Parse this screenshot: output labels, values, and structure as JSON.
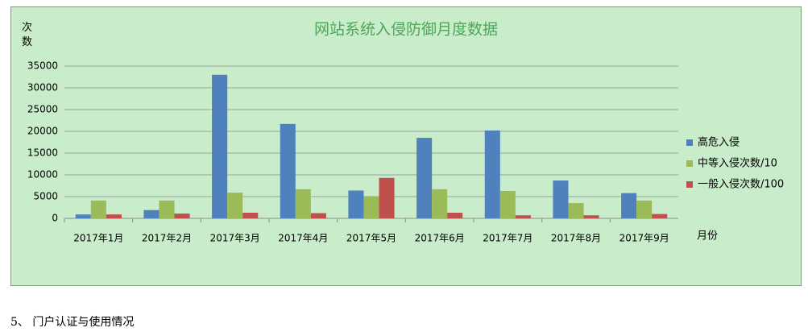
{
  "chart_data": {
    "type": "bar",
    "title": "网站系统入侵防御月度数据",
    "y_label": "次数",
    "x_label": "月份",
    "categories": [
      "2017年1月",
      "2017年2月",
      "2017年3月",
      "2017年4月",
      "2017年5月",
      "2017年6月",
      "2017年7月",
      "2017年8月",
      "2017年9月"
    ],
    "series": [
      {
        "name": "高危入侵",
        "color": "#4f81bd",
        "values": [
          900,
          1900,
          33000,
          21700,
          6400,
          18500,
          20200,
          8700,
          5800
        ]
      },
      {
        "name": "中等入侵次数/10",
        "color": "#9bbb59",
        "values": [
          4100,
          4100,
          5900,
          6700,
          5000,
          6700,
          6300,
          3500,
          4100
        ]
      },
      {
        "name": "一般入侵次数/100",
        "color": "#c0504d",
        "values": [
          900,
          1100,
          1300,
          1200,
          9300,
          1300,
          700,
          700,
          1000
        ]
      }
    ],
    "ylim": [
      0,
      35000
    ],
    "yticks": [
      0,
      5000,
      10000,
      15000,
      20000,
      25000,
      30000,
      35000
    ],
    "grid": true,
    "legend": "right"
  },
  "document": {
    "caption": "5、 门户认证与使用情况"
  }
}
